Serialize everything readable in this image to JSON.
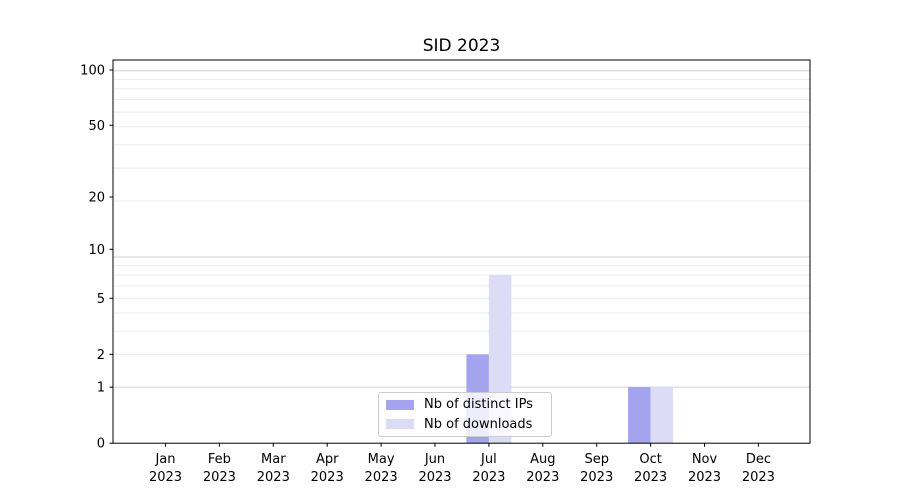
{
  "chart_data": {
    "type": "bar",
    "title": "SID 2023",
    "categories": [
      "Jan",
      "Feb",
      "Mar",
      "Apr",
      "May",
      "Jun",
      "Jul",
      "Aug",
      "Sep",
      "Oct",
      "Nov",
      "Dec"
    ],
    "category_year": "2023",
    "series": [
      {
        "name": "Nb of distinct IPs",
        "color": "#a4a4ee",
        "values": [
          0,
          0,
          0,
          0,
          0,
          0,
          2,
          0,
          0,
          1,
          0,
          0
        ]
      },
      {
        "name": "Nb of downloads",
        "color": "#dcdcf7",
        "values": [
          0,
          0,
          0,
          0,
          0,
          0,
          7,
          0,
          0,
          1,
          0,
          0
        ]
      }
    ],
    "yscale": "log1p",
    "yticks": [
      0,
      1,
      2,
      5,
      10,
      20,
      50,
      100
    ],
    "ylim": [
      0,
      113
    ],
    "xlabel": "",
    "ylabel": "",
    "grid": "on",
    "legend_position": "lower-center-inside"
  },
  "colors": {
    "axis": "#000000",
    "text": "#000000",
    "grid_major": "#d0d0d0",
    "grid_minor": "#ebebeb",
    "background": "#ffffff",
    "legend_border": "#cccccc"
  }
}
